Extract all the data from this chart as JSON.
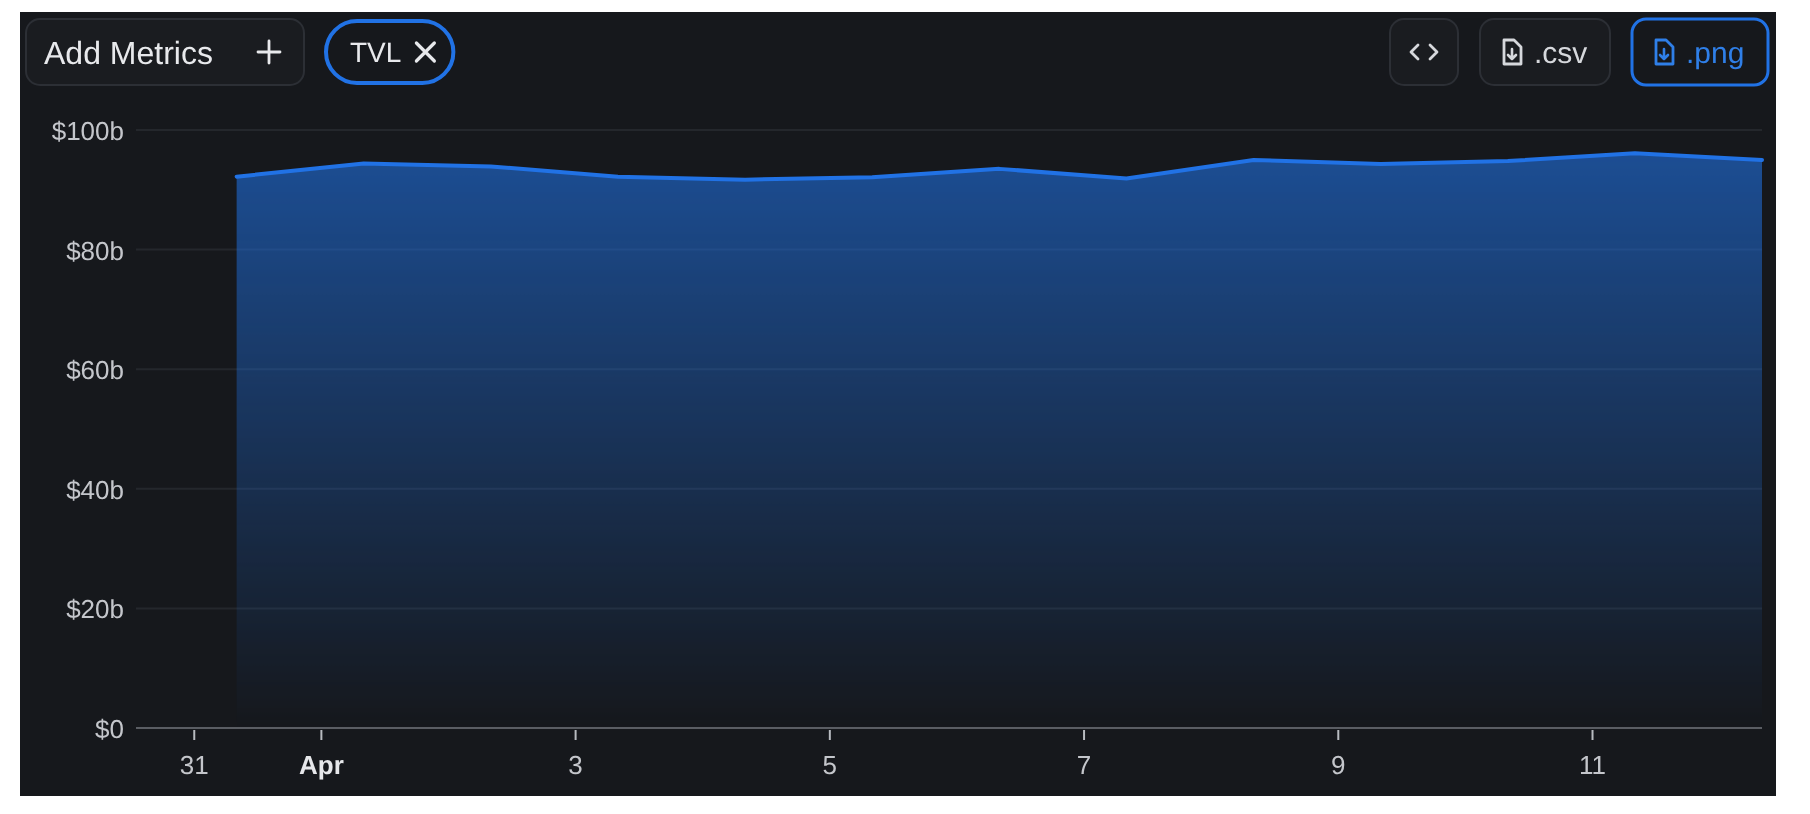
{
  "chart_data": {
    "type": "area",
    "annotations": [
      "Add Metrics",
      ".csv",
      ".png"
    ],
    "x": [
      "--03-31T08:00",
      "--04-01T08:00",
      "--04-02T08:00",
      "--04-03T08:00",
      "--04-04T08:00",
      "--04-05T08:00",
      "--04-06T08:00",
      "--04-07T08:00",
      "--04-08T08:00",
      "--04-09T08:00",
      "--04-10T08:00",
      "--04-11T08:00",
      "--04-12T08:00"
    ],
    "series": [
      {
        "name": "TVL",
        "color": "#2172e5",
        "values": [
          92.2,
          94.4,
          93.9,
          92.2,
          91.7,
          92.1,
          93.5,
          91.9,
          95.0,
          94.3,
          94.8,
          96.1,
          95.0
        ]
      }
    ],
    "xlim": [
      "--03-30T13:00",
      "--04-12T08:00"
    ],
    "xticks": [
      {
        "value": "--03-31",
        "label": "31"
      },
      {
        "value": "--04-01",
        "label": "Apr"
      },
      {
        "value": "--04-03",
        "label": "3"
      },
      {
        "value": "--04-05",
        "label": "5"
      },
      {
        "value": "--04-07",
        "label": "7"
      },
      {
        "value": "--04-09",
        "label": "9"
      },
      {
        "value": "--04-11",
        "label": "11"
      }
    ],
    "ylim": [
      0,
      100
    ],
    "yticks": [
      {
        "value": 0,
        "label": "$0"
      },
      {
        "value": 20,
        "label": "$20b"
      },
      {
        "value": 40,
        "label": "$40b"
      },
      {
        "value": 60,
        "label": "$60b"
      },
      {
        "value": 80,
        "label": "$80b"
      },
      {
        "value": 100,
        "label": "$100b"
      }
    ],
    "grid": "y",
    "legend": "top left"
  }
}
